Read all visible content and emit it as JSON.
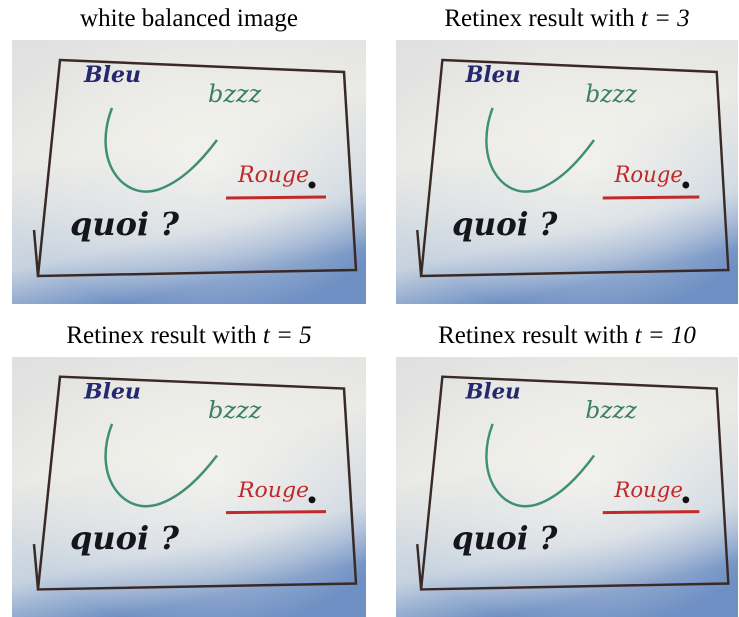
{
  "panels": [
    {
      "caption": "white balanced image"
    },
    {
      "caption": "Retinex result with",
      "math": "t = 3"
    },
    {
      "caption": "Retinex result with",
      "math": "t = 5"
    },
    {
      "caption": "Retinex result with",
      "math": "t = 10"
    }
  ],
  "board_words": {
    "blue": "Bleu",
    "green": "bzzz",
    "red": "Rouge",
    "black": "quoi ?"
  }
}
